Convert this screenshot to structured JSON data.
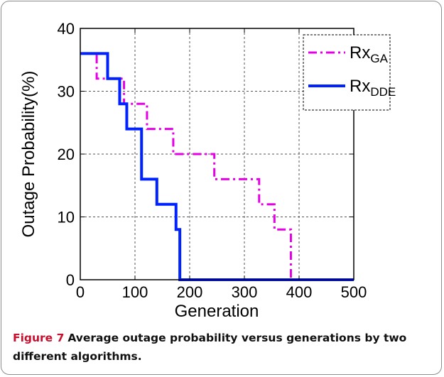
{
  "figure": {
    "caption_label": "Figure 7",
    "caption_text": "Average outage probability versus generations by two different algorithms."
  },
  "chart_data": {
    "type": "line",
    "title": "",
    "xlabel": "Generation",
    "ylabel": "Outage Probability(%)",
    "xlim": [
      0,
      500
    ],
    "ylim": [
      0,
      40
    ],
    "xticks": [
      0,
      100,
      200,
      300,
      400,
      500
    ],
    "yticks": [
      0,
      10,
      20,
      30,
      40
    ],
    "grid": true,
    "legend_position": "top-right",
    "series": [
      {
        "name": "Rx",
        "name_sub": "GA",
        "color": "#e600e6",
        "style": "dash-dot",
        "step": true,
        "x": [
          0,
          30,
          40,
          80,
          100,
          122,
          170,
          190,
          245,
          270,
          327,
          355,
          380,
          385,
          500
        ],
        "y": [
          36,
          32,
          32,
          28,
          28,
          24,
          20,
          20,
          16,
          16,
          12,
          8,
          8,
          0,
          0
        ]
      },
      {
        "name": "Rx",
        "name_sub": "DDE",
        "color": "#0022ff",
        "style": "solid",
        "step": true,
        "x": [
          0,
          50,
          72,
          85,
          112,
          140,
          175,
          182,
          500
        ],
        "y": [
          36,
          32,
          28,
          24,
          16,
          12,
          8,
          0,
          0
        ]
      }
    ]
  }
}
